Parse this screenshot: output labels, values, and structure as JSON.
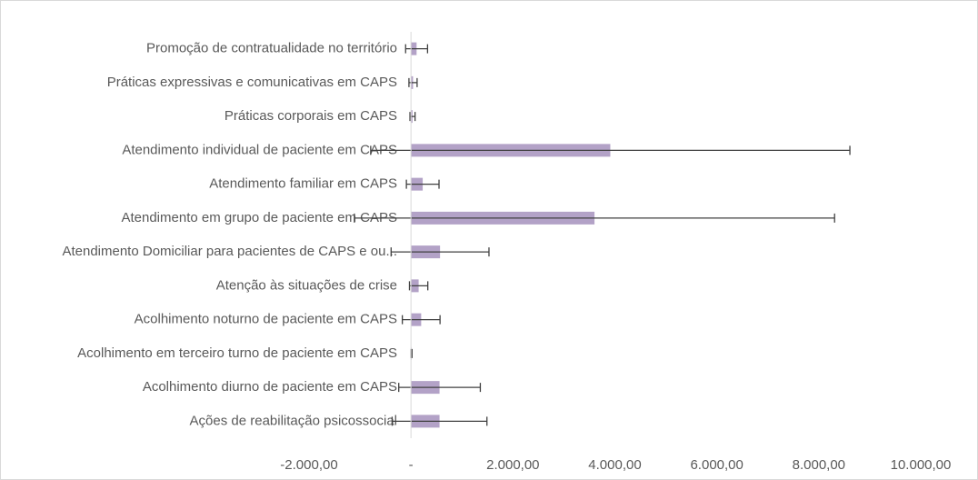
{
  "chart_data": {
    "type": "bar",
    "orientation": "horizontal",
    "categories": [
      "Promoção de contratualidade no território",
      "Práticas expressivas e comunicativas em CAPS",
      "Práticas corporais em CAPS",
      "Atendimento individual de paciente em CAPS",
      "Atendimento familiar em CAPS",
      "Atendimento em grupo de paciente em CAPS",
      "Atendimento Domiciliar para pacientes de CAPS e ou...",
      "Atenção às situações de crise",
      "Acolhimento noturno de paciente em CAPS",
      "Acolhimento em terceiro turno de paciente em CAPS",
      "Acolhimento diurno de paciente em CAPS",
      "Ações de reabilitação psicossocial"
    ],
    "values": [
      110,
      40,
      30,
      3910,
      230,
      3600,
      570,
      150,
      200,
      10,
      560,
      560
    ],
    "errors": [
      215,
      80,
      50,
      4700,
      320,
      4710,
      960,
      180,
      370,
      10,
      800,
      930
    ],
    "color": "#b3a2c7",
    "error_color": "#404040",
    "xlim": [
      -2000,
      10000
    ],
    "xticks": [
      {
        "value": -2000,
        "label": "-2.000,00"
      },
      {
        "value": 0,
        "label": "-"
      },
      {
        "value": 2000,
        "label": "2.000,00"
      },
      {
        "value": 4000,
        "label": "4.000,00"
      },
      {
        "value": 6000,
        "label": "6.000,00"
      },
      {
        "value": 8000,
        "label": "8.000,00"
      },
      {
        "value": 10000,
        "label": "10.000,00"
      }
    ],
    "grid": false
  }
}
